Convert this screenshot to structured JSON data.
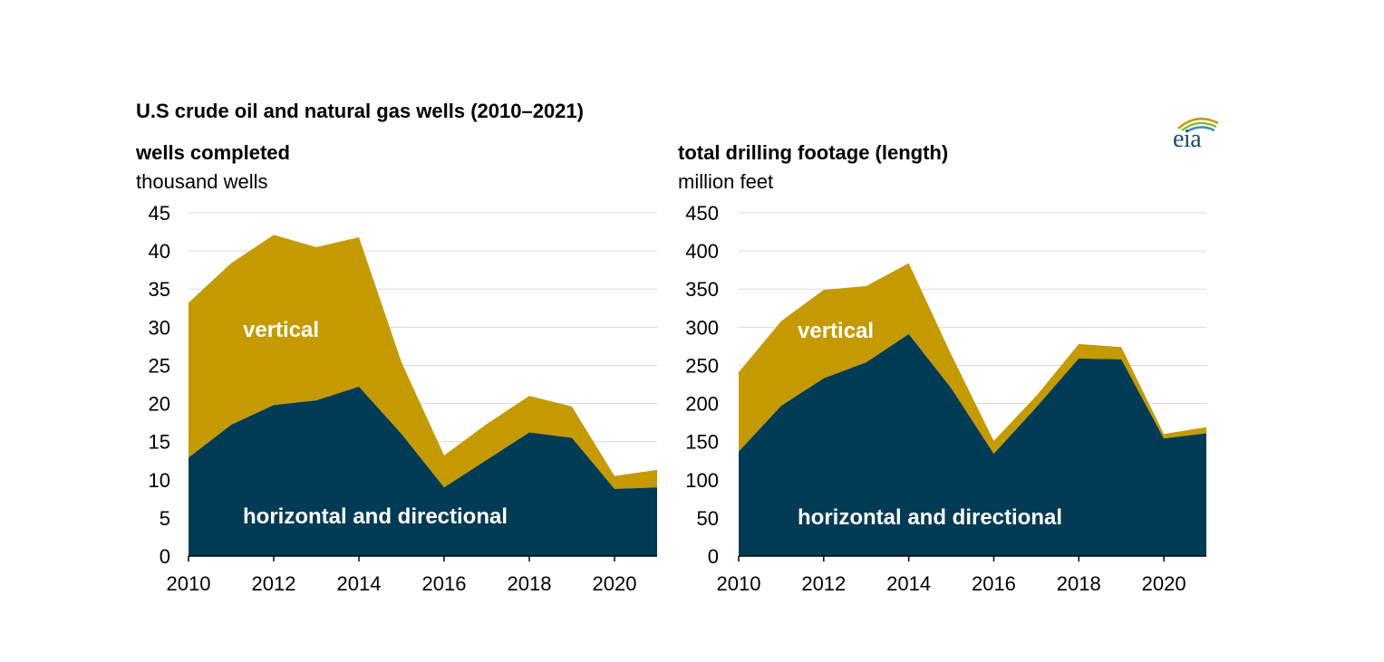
{
  "title": "U.S crude oil and natural gas wells (2010–2021)",
  "logo_text": "eia",
  "colors": {
    "vertical": "#c49a00",
    "horizontal": "#003b56",
    "grid": "#d9d9d9",
    "axis": "#000000"
  },
  "panels": [
    {
      "title": "wells completed",
      "unit": "thousand wells"
    },
    {
      "title": "total drilling footage (length)",
      "unit": "million feet"
    }
  ],
  "chart_data": [
    {
      "type": "area",
      "stacked": true,
      "title": "wells completed",
      "ylabel": "thousand wells",
      "x": [
        2010,
        2011,
        2012,
        2013,
        2014,
        2015,
        2016,
        2017,
        2018,
        2019,
        2020,
        2021
      ],
      "xticks": [
        "2010",
        "2012",
        "2014",
        "2016",
        "2018",
        "2020"
      ],
      "yticks": [
        "0",
        "5",
        "10",
        "15",
        "20",
        "25",
        "30",
        "35",
        "40",
        "45"
      ],
      "ylim": [
        0,
        45
      ],
      "grid": true,
      "series": [
        {
          "name": "horizontal and directional",
          "values": [
            12.9,
            17.2,
            19.8,
            20.4,
            22.2,
            16.0,
            9.0,
            12.6,
            16.2,
            15.5,
            8.8,
            9.0
          ]
        },
        {
          "name": "vertical",
          "values": [
            20.3,
            21.2,
            22.3,
            20.1,
            19.6,
            9.4,
            4.2,
            4.7,
            4.8,
            4.1,
            1.7,
            2.3
          ]
        }
      ],
      "series_labels": [
        "vertical",
        "horizontal and directional"
      ]
    },
    {
      "type": "area",
      "stacked": true,
      "title": "total drilling footage (length)",
      "ylabel": "million feet",
      "x": [
        2010,
        2011,
        2012,
        2013,
        2014,
        2015,
        2016,
        2017,
        2018,
        2019,
        2020,
        2021
      ],
      "xticks": [
        "2010",
        "2012",
        "2014",
        "2016",
        "2018",
        "2020"
      ],
      "yticks": [
        "0",
        "50",
        "100",
        "150",
        "200",
        "250",
        "300",
        "350",
        "400",
        "450"
      ],
      "ylim": [
        0,
        450
      ],
      "grid": true,
      "series": [
        {
          "name": "horizontal and directional",
          "values": [
            137,
            197,
            233,
            254,
            291,
            220,
            134,
            195,
            259,
            258,
            154,
            161
          ]
        },
        {
          "name": "vertical",
          "values": [
            104,
            111,
            116,
            100,
            93,
            44,
            17,
            15,
            19,
            16,
            6,
            8
          ]
        }
      ],
      "series_labels": [
        "vertical",
        "horizontal and directional"
      ]
    }
  ]
}
